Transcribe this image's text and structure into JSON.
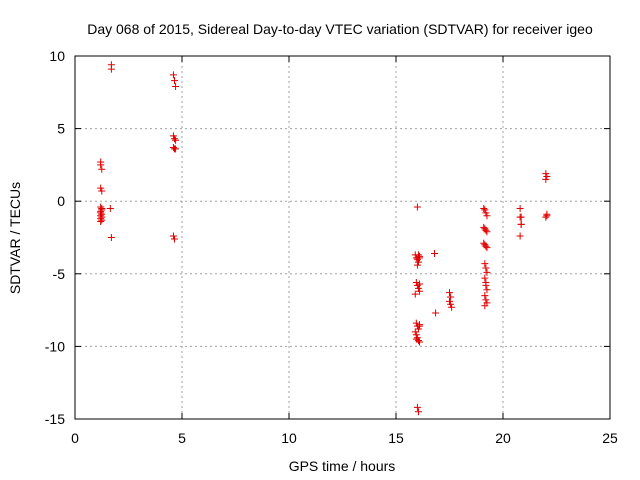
{
  "chart_data": {
    "type": "scatter",
    "title": "Day 068 of 2015, Sidereal Day-to-day VTEC variation (SDTVAR) for receiver igeo",
    "xlabel": "GPS time / hours",
    "ylabel": "SDTVAR / TECUs",
    "xlim": [
      0,
      25
    ],
    "ylim": [
      -15,
      10
    ],
    "xticks": [
      0,
      5,
      10,
      15,
      20,
      25
    ],
    "yticks": [
      -15,
      -10,
      -5,
      0,
      5,
      10
    ],
    "xtick_labels": [
      "0",
      "5",
      "10",
      "15",
      "20",
      "25"
    ],
    "ytick_labels": [
      "-15",
      "-10",
      "-5",
      "0",
      "5",
      "10"
    ],
    "grid": true,
    "marker": "+",
    "color": "#e00000",
    "series": [
      {
        "name": "SDTVAR",
        "x": [
          1.2,
          1.2,
          1.25,
          1.2,
          1.25,
          1.2,
          1.25,
          1.2,
          1.25,
          1.2,
          1.25,
          1.2,
          1.25,
          1.2,
          1.25,
          1.2,
          1.7,
          1.7,
          1.65,
          1.7,
          4.6,
          4.65,
          4.7,
          4.6,
          4.65,
          4.7,
          4.6,
          4.65,
          4.7,
          4.6,
          4.65,
          15.9,
          15.95,
          16.0,
          16.05,
          16.0,
          16.05,
          16.1,
          15.95,
          16.0,
          16.05,
          16.1,
          15.9,
          15.95,
          16.0,
          16.05,
          16.1,
          15.9,
          15.95,
          16.0,
          16.05,
          16.1,
          15.95,
          16.0,
          16.05,
          16.0,
          16.1,
          16.1,
          16.1,
          16.8,
          16.85,
          17.5,
          17.55,
          17.5,
          17.55,
          17.6,
          19.1,
          19.15,
          19.2,
          19.25,
          19.1,
          19.15,
          19.2,
          19.25,
          19.1,
          19.15,
          19.2,
          19.25,
          19.15,
          19.2,
          19.25,
          19.15,
          19.2,
          19.25,
          19.15,
          19.2,
          19.25,
          19.15,
          19.2,
          20.8,
          20.85,
          20.8,
          20.85,
          20.8,
          20.85,
          22.0,
          22.05,
          22.0,
          22.05,
          22.0,
          22.05
        ],
        "y": [
          2.7,
          2.5,
          2.2,
          0.9,
          0.7,
          -0.4,
          -0.6,
          -0.8,
          -0.9,
          -1.0,
          -1.1,
          -1.2,
          -1.3,
          -1.4,
          -0.5,
          -0.7,
          9.4,
          9.1,
          -0.5,
          -2.5,
          8.7,
          8.3,
          7.9,
          4.5,
          4.3,
          4.2,
          3.7,
          3.6,
          3.6,
          -2.4,
          -2.6,
          -3.7,
          -3.9,
          -4.0,
          -4.2,
          -4.4,
          -3.7,
          -3.9,
          -5.6,
          -5.8,
          -6.0,
          -6.2,
          -6.4,
          -8.4,
          -8.6,
          -8.8,
          -8.5,
          -9.0,
          -9.2,
          -9.4,
          -9.6,
          -9.7,
          -9.5,
          -14.2,
          -14.5,
          -0.4,
          -3.8,
          -5.7,
          -8.6,
          -3.6,
          -7.7,
          -6.3,
          -6.6,
          -6.9,
          -7.1,
          -7.3,
          -0.5,
          -0.6,
          -0.8,
          -1.0,
          -1.8,
          -1.9,
          -2.0,
          -2.1,
          -2.9,
          -3.0,
          -3.1,
          -3.2,
          -4.3,
          -4.6,
          -4.9,
          -5.3,
          -5.8,
          -6.1,
          -6.5,
          -6.8,
          -7.0,
          -7.2,
          -5.6,
          -0.5,
          -1.1,
          -1.1,
          -1.6,
          -2.4,
          -1.6,
          1.9,
          1.7,
          1.5,
          -1.0,
          -1.1,
          -0.9
        ]
      }
    ]
  }
}
